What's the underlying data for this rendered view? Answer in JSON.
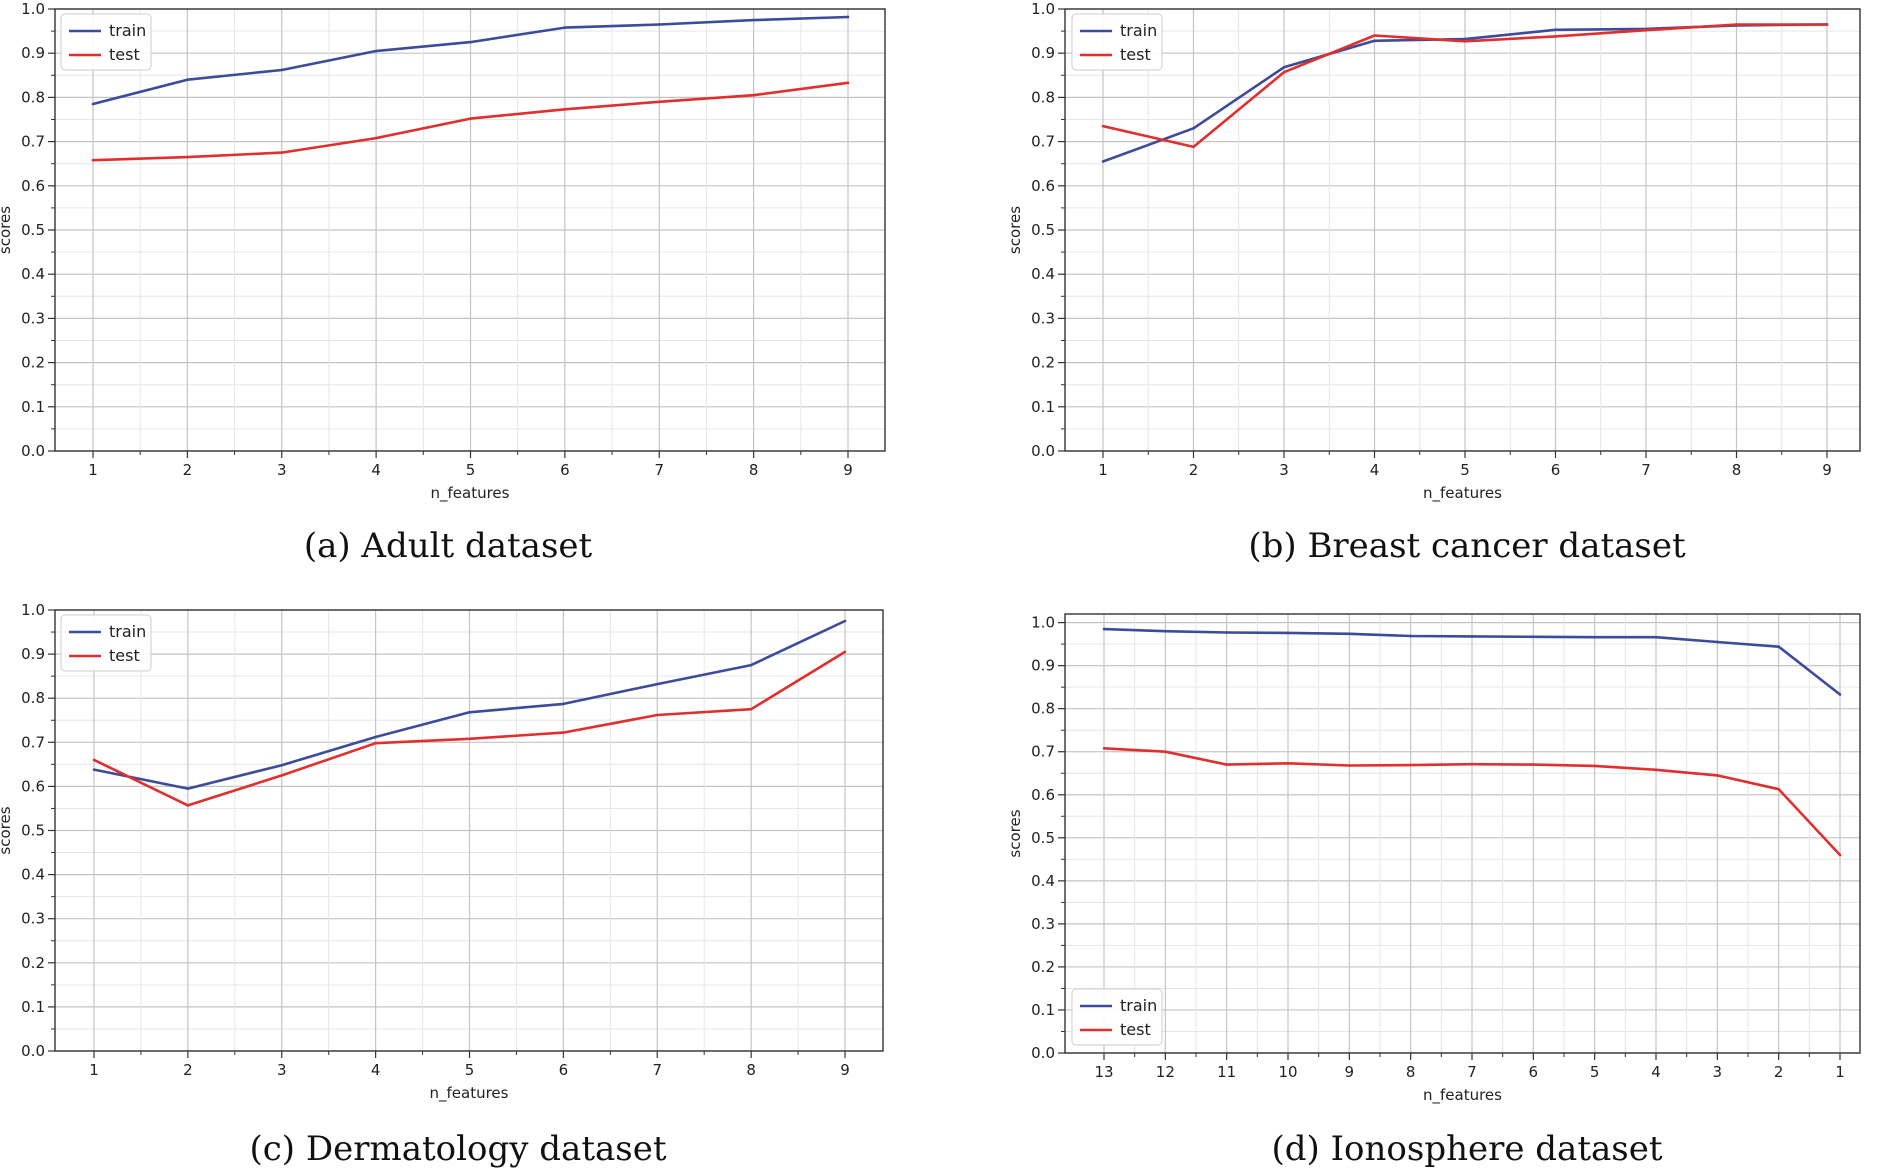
{
  "figure": {
    "panels": [
      {
        "caption": "(a) Adult dataset"
      },
      {
        "caption": "(b) Breast cancer dataset"
      },
      {
        "caption": "(c) Dermatology dataset"
      },
      {
        "caption": "(d) Ionosphere dataset"
      }
    ]
  },
  "series_colors": {
    "train": "#3c4b9a",
    "test": "#e0302e"
  },
  "chart_data": [
    {
      "type": "line",
      "title": "",
      "xlabel": "n_features",
      "ylabel": "scores",
      "categories": [
        "1",
        "2",
        "3",
        "4",
        "5",
        "6",
        "7",
        "8",
        "9"
      ],
      "ylim": [
        0.0,
        1.0
      ],
      "yticks": [
        "0.0",
        "0.1",
        "0.2",
        "0.3",
        "0.4",
        "0.5",
        "0.6",
        "0.7",
        "0.8",
        "0.9",
        "1.0"
      ],
      "grid": true,
      "legend_position": "top-left",
      "series": [
        {
          "name": "train",
          "values": [
            0.785,
            0.84,
            0.862,
            0.905,
            0.925,
            0.958,
            0.965,
            0.975,
            0.982
          ]
        },
        {
          "name": "test",
          "values": [
            0.658,
            0.665,
            0.675,
            0.708,
            0.752,
            0.773,
            0.79,
            0.805,
            0.833
          ]
        }
      ]
    },
    {
      "type": "line",
      "title": "",
      "xlabel": "n_features",
      "ylabel": "scores",
      "categories": [
        "1",
        "2",
        "3",
        "4",
        "5",
        "6",
        "7",
        "8",
        "9"
      ],
      "ylim": [
        0.0,
        1.0
      ],
      "yticks": [
        "0.0",
        "0.1",
        "0.2",
        "0.3",
        "0.4",
        "0.5",
        "0.6",
        "0.7",
        "0.8",
        "0.9",
        "1.0"
      ],
      "grid": true,
      "legend_position": "top-left",
      "series": [
        {
          "name": "train",
          "values": [
            0.655,
            0.73,
            0.868,
            0.928,
            0.932,
            0.953,
            0.955,
            0.963,
            0.965
          ]
        },
        {
          "name": "test",
          "values": [
            0.735,
            0.688,
            0.857,
            0.94,
            0.927,
            0.938,
            0.952,
            0.965,
            0.965
          ]
        }
      ]
    },
    {
      "type": "line",
      "title": "",
      "xlabel": "n_features",
      "ylabel": "scores",
      "categories": [
        "1",
        "2",
        "3",
        "4",
        "5",
        "6",
        "7",
        "8",
        "9"
      ],
      "ylim": [
        0.0,
        1.0
      ],
      "yticks": [
        "0.0",
        "0.1",
        "0.2",
        "0.3",
        "0.4",
        "0.5",
        "0.6",
        "0.7",
        "0.8",
        "0.9",
        "1.0"
      ],
      "grid": true,
      "legend_position": "top-left",
      "series": [
        {
          "name": "train",
          "values": [
            0.638,
            0.595,
            0.648,
            0.712,
            0.768,
            0.787,
            0.832,
            0.875,
            0.975
          ]
        },
        {
          "name": "test",
          "values": [
            0.66,
            0.557,
            0.625,
            0.698,
            0.708,
            0.722,
            0.762,
            0.775,
            0.905
          ]
        }
      ]
    },
    {
      "type": "line",
      "title": "",
      "xlabel": "n_features",
      "ylabel": "scores",
      "categories": [
        "13",
        "12",
        "11",
        "10",
        "9",
        "8",
        "7",
        "6",
        "5",
        "4",
        "3",
        "2",
        "1"
      ],
      "ylim": [
        0.0,
        1.02
      ],
      "yticks": [
        "0.0",
        "0.1",
        "0.2",
        "0.3",
        "0.4",
        "0.5",
        "0.6",
        "0.7",
        "0.8",
        "0.9",
        "1.0"
      ],
      "grid": true,
      "legend_position": "bottom-left",
      "series": [
        {
          "name": "train",
          "values": [
            0.985,
            0.98,
            0.977,
            0.976,
            0.974,
            0.969,
            0.968,
            0.967,
            0.966,
            0.966,
            0.955,
            0.944,
            0.833
          ]
        },
        {
          "name": "test",
          "values": [
            0.708,
            0.7,
            0.67,
            0.673,
            0.668,
            0.669,
            0.671,
            0.67,
            0.667,
            0.658,
            0.645,
            0.613,
            0.46
          ]
        }
      ]
    }
  ]
}
